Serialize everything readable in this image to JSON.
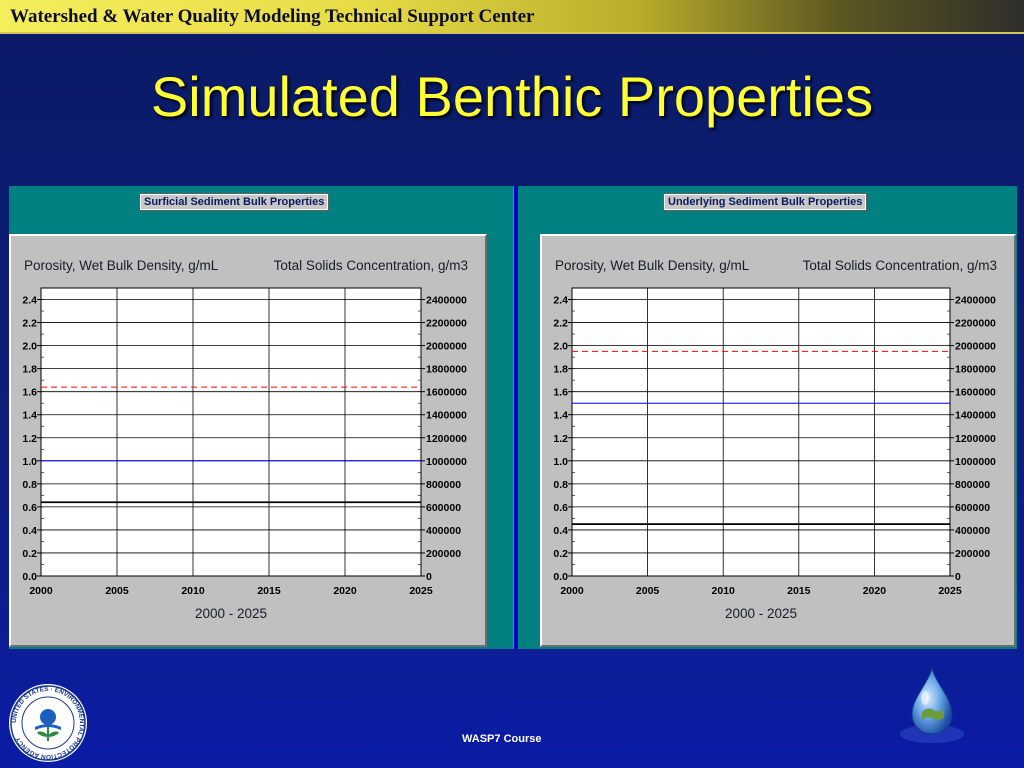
{
  "header": {
    "title": "Watershed & Water Quality Modeling Technical Support Center"
  },
  "slide": {
    "title": "Simulated Benthic Properties"
  },
  "footer": {
    "course": "WASP7 Course"
  },
  "logos": {
    "epa_ring_text": "UNITED STATES · ENVIRONMENTAL PROTECTION AGENCY"
  },
  "colors": {
    "panel_bg": "#008080",
    "chart_bg": "#c0c0c0",
    "porosity_line": "#000000",
    "density_line": "#ff0000",
    "solids_line": "#0000ff"
  },
  "chart_data": [
    {
      "type": "line",
      "title": "Surficial Sediment Bulk Properties",
      "ylabel": "Porosity, Wet Bulk Density, g/mL",
      "y2label": "Total Solids Concentration, g/m3",
      "xlabel": "2000 - 2025",
      "x_ticks": [
        2000,
        2005,
        2010,
        2015,
        2020,
        2025
      ],
      "y_ticks": [
        "0.0",
        "0.2",
        "0.4",
        "0.6",
        "0.8",
        "1.0",
        "1.2",
        "1.4",
        "1.6",
        "1.8",
        "2.0",
        "2.2",
        "2.4"
      ],
      "y2_ticks": [
        "0",
        "200000",
        "400000",
        "600000",
        "800000",
        "1000000",
        "1200000",
        "1400000",
        "1600000",
        "1800000",
        "2000000",
        "2200000",
        "2400000"
      ],
      "xlim": [
        2000,
        2025
      ],
      "ylim": [
        0,
        2.5
      ],
      "y2lim": [
        0,
        2500000
      ],
      "grid": true,
      "series": [
        {
          "color": "#000000",
          "style": "solid",
          "axis": "left",
          "x": [
            2000,
            2025
          ],
          "y": [
            0.64,
            0.64
          ]
        },
        {
          "color": "#ff0000",
          "style": "dashed",
          "axis": "left",
          "x": [
            2000,
            2025
          ],
          "y": [
            1.64,
            1.64
          ]
        },
        {
          "color": "#0000ff",
          "style": "solid",
          "axis": "right",
          "x": [
            2000,
            2025
          ],
          "y": [
            1000000,
            1000000
          ]
        }
      ]
    },
    {
      "type": "line",
      "title": "Underlying Sediment Bulk Properties",
      "ylabel": "Porosity, Wet Bulk Density, g/mL",
      "y2label": "Total Solids Concentration, g/m3",
      "xlabel": "2000 - 2025",
      "x_ticks": [
        2000,
        2005,
        2010,
        2015,
        2020,
        2025
      ],
      "y_ticks": [
        "0.0",
        "0.2",
        "0.4",
        "0.6",
        "0.8",
        "1.0",
        "1.2",
        "1.4",
        "1.6",
        "1.8",
        "2.0",
        "2.2",
        "2.4"
      ],
      "y2_ticks": [
        "0",
        "200000",
        "400000",
        "600000",
        "800000",
        "1000000",
        "1200000",
        "1400000",
        "1600000",
        "1800000",
        "2000000",
        "2200000",
        "2400000"
      ],
      "xlim": [
        2000,
        2025
      ],
      "ylim": [
        0,
        2.5
      ],
      "y2lim": [
        0,
        2500000
      ],
      "grid": true,
      "series": [
        {
          "color": "#000000",
          "style": "solid",
          "axis": "left",
          "x": [
            2000,
            2025
          ],
          "y": [
            0.45,
            0.45
          ]
        },
        {
          "color": "#ff0000",
          "style": "dashed",
          "axis": "left",
          "x": [
            2000,
            2025
          ],
          "y": [
            1.95,
            1.95
          ]
        },
        {
          "color": "#0000ff",
          "style": "solid",
          "axis": "right",
          "x": [
            2000,
            2025
          ],
          "y": [
            1500000,
            1500000
          ]
        }
      ]
    }
  ]
}
